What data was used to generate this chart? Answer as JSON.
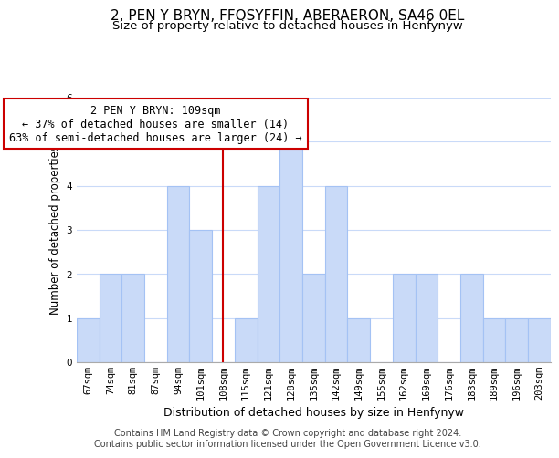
{
  "title": "2, PEN Y BRYN, FFOSYFFIN, ABERAERON, SA46 0EL",
  "subtitle": "Size of property relative to detached houses in Henfynyw",
  "xlabel": "Distribution of detached houses by size in Henfynyw",
  "ylabel": "Number of detached properties",
  "bin_labels": [
    "67sqm",
    "74sqm",
    "81sqm",
    "87sqm",
    "94sqm",
    "101sqm",
    "108sqm",
    "115sqm",
    "121sqm",
    "128sqm",
    "135sqm",
    "142sqm",
    "149sqm",
    "155sqm",
    "162sqm",
    "169sqm",
    "176sqm",
    "183sqm",
    "189sqm",
    "196sqm",
    "203sqm"
  ],
  "counts": [
    1,
    2,
    2,
    0,
    4,
    3,
    0,
    1,
    4,
    5,
    2,
    4,
    1,
    0,
    2,
    2,
    0,
    2,
    1,
    1,
    1
  ],
  "highlight_bin_index": 6,
  "bar_color": "#c9daf8",
  "bar_edge_color": "#a4c2f4",
  "highlight_line_color": "#cc0000",
  "annotation_text": "2 PEN Y BRYN: 109sqm\n← 37% of detached houses are smaller (14)\n63% of semi-detached houses are larger (24) →",
  "annotation_box_edge": "#cc0000",
  "ylim": [
    0,
    6
  ],
  "yticks": [
    0,
    1,
    2,
    3,
    4,
    5,
    6
  ],
  "footer_line1": "Contains HM Land Registry data © Crown copyright and database right 2024.",
  "footer_line2": "Contains public sector information licensed under the Open Government Licence v3.0.",
  "title_fontsize": 11,
  "subtitle_fontsize": 9.5,
  "xlabel_fontsize": 9,
  "ylabel_fontsize": 8.5,
  "tick_fontsize": 7.5,
  "annotation_fontsize": 8.5,
  "footer_fontsize": 7
}
